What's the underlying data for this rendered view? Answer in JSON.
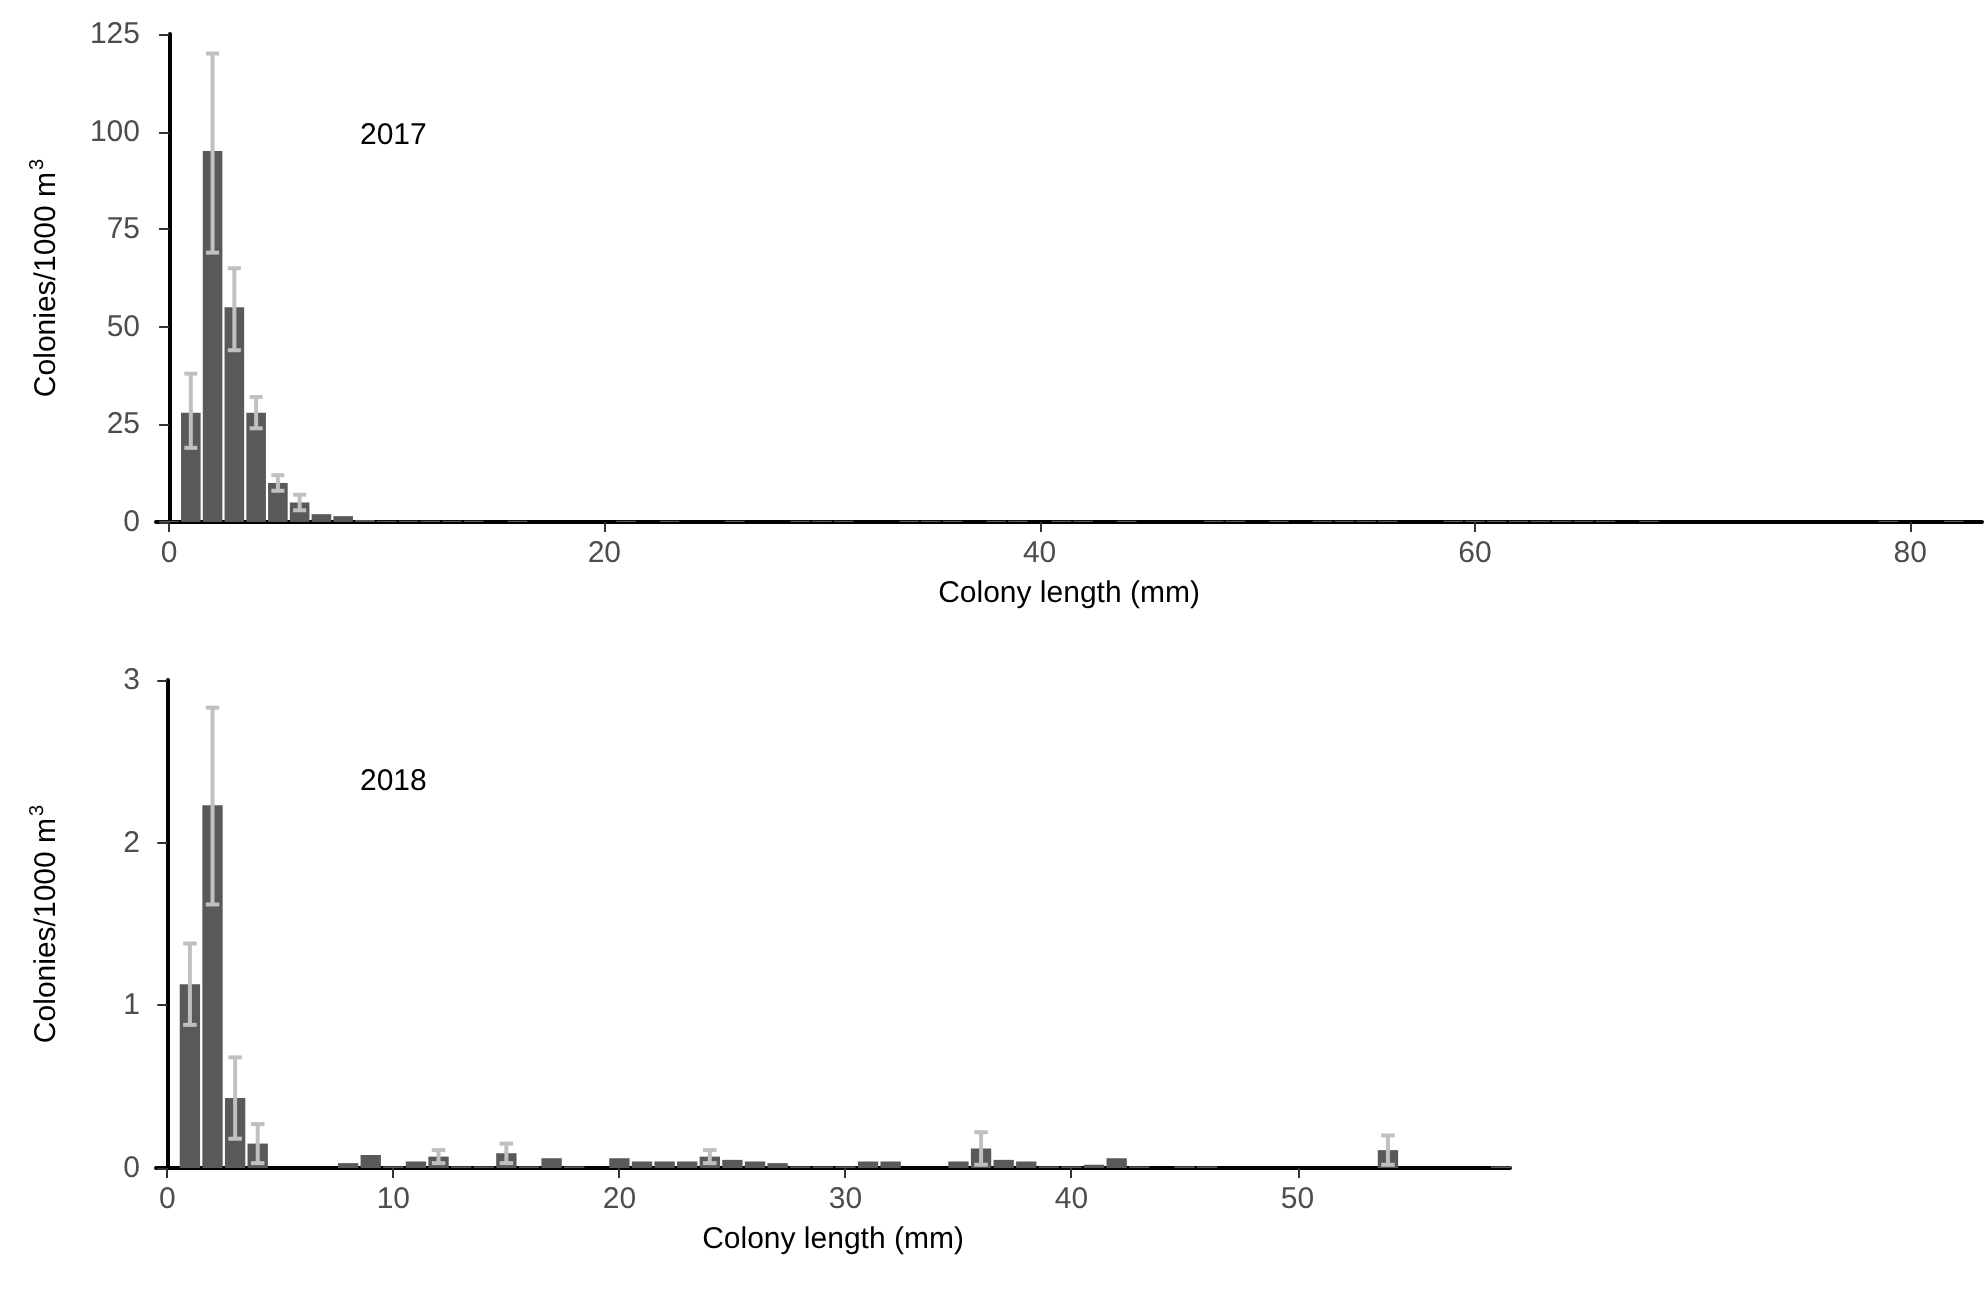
{
  "chart_data": [
    {
      "type": "bar",
      "title": "2017",
      "xlabel": "Colony length (mm)",
      "ylabel": "Colonies/1000 m$^{3}$",
      "grid": false,
      "xlim": [
        -0.6,
        83.3
      ],
      "xticks": [
        0,
        20,
        40,
        60,
        80
      ],
      "ylim": [
        0,
        125
      ],
      "yticks": [
        0,
        25,
        50,
        75,
        100,
        125
      ],
      "x": [
        0,
        1,
        2,
        3,
        4,
        5,
        6,
        7,
        8,
        9,
        10,
        11,
        12,
        13,
        14,
        16,
        21,
        23,
        26,
        29,
        30,
        31,
        34,
        35,
        36,
        38,
        39,
        41,
        42,
        44,
        48,
        49,
        51,
        53,
        54,
        55,
        56,
        59,
        60,
        61,
        62,
        63,
        64,
        65,
        66,
        68,
        79,
        82
      ],
      "series": [
        {
          "color": "#595959",
          "values": [
            0.3,
            28,
            95,
            55,
            28,
            10,
            5,
            2,
            1.5,
            0.5,
            0.3,
            0.3,
            0.3,
            0.3,
            0.3,
            0.3,
            0.3,
            0.3,
            0.3,
            0.3,
            0.3,
            0.3,
            0.3,
            0.3,
            0.3,
            0.3,
            0.3,
            0.3,
            0.3,
            0.3,
            0.3,
            0.3,
            0.3,
            0.3,
            0.3,
            0.3,
            0.3,
            0.3,
            0.3,
            0.3,
            0.3,
            0.3,
            0.3,
            0.3,
            0.3,
            0.3,
            0.3,
            0.3
          ],
          "errors": [
            null,
            [
              19,
              38
            ],
            [
              69,
              120
            ],
            [
              44,
              65
            ],
            [
              24,
              32
            ],
            [
              8,
              12
            ],
            [
              3,
              7
            ],
            null,
            null,
            null,
            null,
            null,
            null,
            null,
            null,
            null,
            null,
            null,
            null,
            null,
            null,
            null,
            null,
            null,
            null,
            null,
            null,
            null,
            null,
            null,
            null,
            null,
            null,
            null,
            null,
            null,
            null,
            null,
            null,
            null,
            null,
            null,
            null,
            null,
            null,
            null,
            null,
            null
          ]
        }
      ]
    },
    {
      "type": "bar",
      "title": "2018",
      "xlabel": "Colony length (mm)",
      "ylabel": "Colonies/1000 m$^{3}$",
      "grid": false,
      "xlim": [
        -0.5,
        59.4
      ],
      "xticks": [
        0,
        10,
        20,
        30,
        40,
        50
      ],
      "ylim": [
        0,
        3
      ],
      "yticks": [
        0,
        1,
        2,
        3
      ],
      "x": [
        1,
        2,
        3,
        4,
        8,
        9,
        10,
        11,
        12,
        13,
        14,
        15,
        16,
        17,
        18,
        20,
        21,
        22,
        23,
        24,
        25,
        26,
        27,
        28,
        29,
        30,
        31,
        32,
        35,
        36,
        37,
        38,
        39,
        40,
        41,
        42,
        43,
        45,
        46,
        54,
        59
      ],
      "series": [
        {
          "color": "#595959",
          "values": [
            1.13,
            2.23,
            0.43,
            0.15,
            0.03,
            0.08,
            0.01,
            0.04,
            0.07,
            0.01,
            0.01,
            0.09,
            0.01,
            0.06,
            0.01,
            0.06,
            0.04,
            0.04,
            0.04,
            0.07,
            0.05,
            0.04,
            0.03,
            0.01,
            0.01,
            0.01,
            0.04,
            0.04,
            0.04,
            0.12,
            0.05,
            0.04,
            0.01,
            0.01,
            0.02,
            0.06,
            0.01,
            0.01,
            0.01,
            0.11,
            0.01
          ],
          "errors": [
            [
              0.88,
              1.38
            ],
            [
              1.62,
              2.83
            ],
            [
              0.18,
              0.68
            ],
            [
              0.03,
              0.27
            ],
            null,
            null,
            null,
            null,
            0.04,
            null,
            null,
            0.06,
            null,
            null,
            null,
            null,
            null,
            null,
            null,
            0.04,
            null,
            null,
            null,
            null,
            null,
            null,
            null,
            null,
            null,
            0.1,
            null,
            null,
            null,
            null,
            null,
            null,
            null,
            null,
            null,
            [
              0.02,
              0.2
            ],
            null
          ]
        }
      ]
    }
  ]
}
